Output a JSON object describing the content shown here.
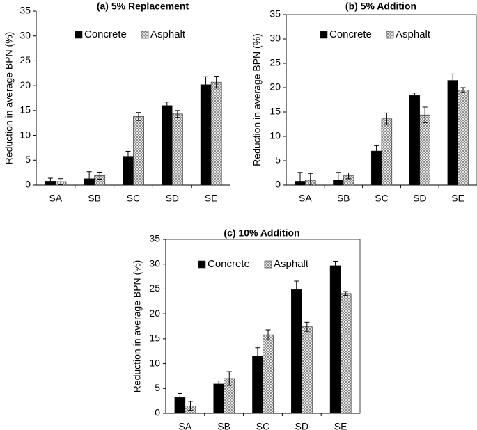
{
  "chart_data": [
    {
      "type": "bar",
      "title": "(a) 5% Replacement",
      "xlabel": "",
      "ylabel": "Reduction in average BPN (%)",
      "ylim": [
        0,
        35
      ],
      "yticks": [
        0,
        5,
        10,
        15,
        20,
        25,
        30,
        35
      ],
      "categories": [
        "SA",
        "SB",
        "SC",
        "SD",
        "SE"
      ],
      "legend": "top-left",
      "series": [
        {
          "name": "Concrete",
          "color": "#000000",
          "values": [
            0.8,
            1.3,
            5.8,
            16.0,
            20.2
          ],
          "errors": [
            0.6,
            1.4,
            1.0,
            0.7,
            1.6
          ]
        },
        {
          "name": "Asphalt",
          "color": "#c8c8c8",
          "values": [
            0.7,
            1.9,
            13.8,
            14.3,
            20.7
          ],
          "errors": [
            0.6,
            0.7,
            0.8,
            0.7,
            1.2
          ]
        }
      ]
    },
    {
      "type": "bar",
      "title": "(b) 5% Addition",
      "xlabel": "",
      "ylabel": "Reduction in average BPN (%)",
      "ylim": [
        0,
        35
      ],
      "yticks": [
        0,
        5,
        10,
        15,
        20,
        25,
        30,
        35
      ],
      "categories": [
        "SA",
        "SB",
        "SC",
        "SD",
        "SE"
      ],
      "legend": "top-left",
      "series": [
        {
          "name": "Concrete",
          "color": "#000000",
          "values": [
            0.8,
            1.1,
            7.0,
            18.4,
            21.5
          ],
          "errors": [
            1.8,
            1.5,
            1.1,
            0.5,
            1.3
          ]
        },
        {
          "name": "Asphalt",
          "color": "#c8c8c8",
          "values": [
            1.0,
            1.9,
            13.6,
            14.4,
            19.5
          ],
          "errors": [
            1.4,
            0.6,
            1.2,
            1.6,
            0.5
          ]
        }
      ]
    },
    {
      "type": "bar",
      "title": "(c) 10% Addition",
      "xlabel": "",
      "ylabel": "Reduction in average BPN (%)",
      "ylim": [
        0,
        35
      ],
      "yticks": [
        0,
        5,
        10,
        15,
        20,
        25,
        30,
        35
      ],
      "categories": [
        "SA",
        "SB",
        "SC",
        "SD",
        "SE"
      ],
      "legend": "top-left",
      "series": [
        {
          "name": "Concrete",
          "color": "#000000",
          "values": [
            3.2,
            5.9,
            11.5,
            24.9,
            29.7
          ],
          "errors": [
            0.8,
            0.6,
            1.7,
            1.7,
            0.9
          ]
        },
        {
          "name": "Asphalt",
          "color": "#c8c8c8",
          "values": [
            1.5,
            7.0,
            15.8,
            17.4,
            24.1
          ],
          "errors": [
            0.9,
            1.4,
            1.0,
            0.9,
            0.4
          ]
        }
      ]
    }
  ]
}
